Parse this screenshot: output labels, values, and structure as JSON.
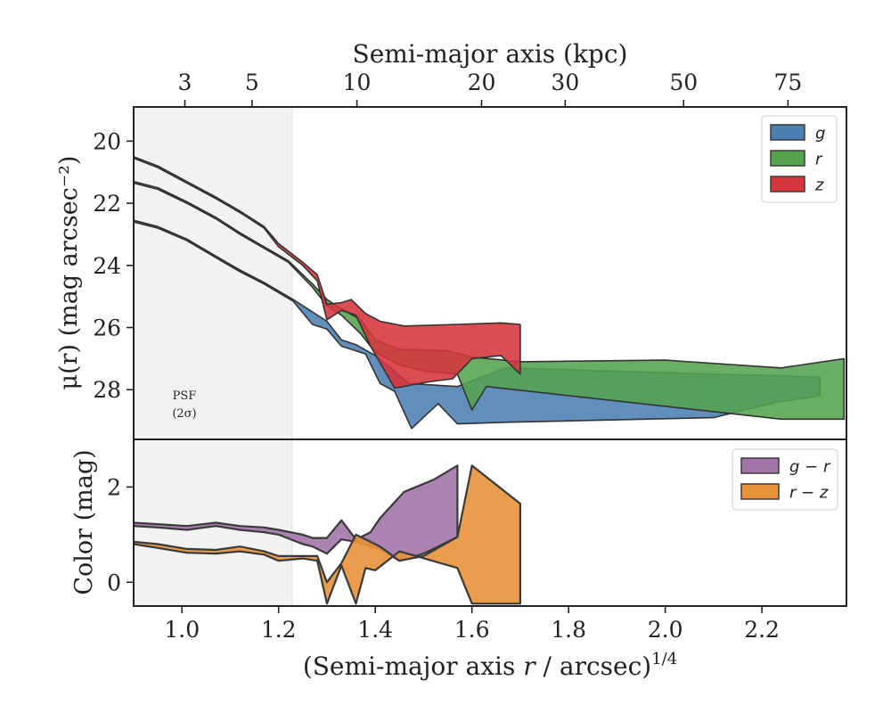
{
  "chart_data": [
    {
      "type": "area",
      "panel": "surface-brightness",
      "ylabel": "μ(r) (mag arcsec⁻²)",
      "ylim": [
        29.6,
        18.9
      ],
      "xlim": [
        0.9,
        2.375
      ],
      "y_ticks": [
        20,
        22,
        24,
        26,
        28
      ],
      "top_axis": {
        "label": "Semi-major axis (kpc)",
        "ticks": [
          {
            "label": "3",
            "x": 1.006
          },
          {
            "label": "5",
            "x": 1.145
          },
          {
            "label": "10",
            "x": 1.362
          },
          {
            "label": "20",
            "x": 1.62
          },
          {
            "label": "30",
            "x": 1.793
          },
          {
            "label": "50",
            "x": 2.038
          },
          {
            "label": "75",
            "x": 2.254
          }
        ]
      },
      "psf_band": {
        "x_end": 1.228,
        "label_line1": "PSF",
        "label_line2": "(2σ)"
      },
      "legend_position": "top-right",
      "series": [
        {
          "name": "g",
          "color": "#4b7fb3",
          "upper": [
            [
              0.9,
              22.55
            ],
            [
              0.95,
              22.75
            ],
            [
              1.01,
              23.15
            ],
            [
              1.07,
              23.7
            ],
            [
              1.12,
              24.15
            ],
            [
              1.17,
              24.55
            ],
            [
              1.23,
              25.1
            ],
            [
              1.27,
              25.5
            ],
            [
              1.3,
              25.8
            ],
            [
              1.33,
              26.4
            ],
            [
              1.36,
              26.55
            ],
            [
              1.4,
              26.9
            ],
            [
              1.47,
              27.8
            ],
            [
              1.57,
              27.9
            ],
            [
              1.67,
              27.3
            ],
            [
              2.1,
              27.5
            ],
            [
              2.23,
              27.55
            ],
            [
              2.32,
              27.6
            ]
          ],
          "lower": [
            [
              0.9,
              22.6
            ],
            [
              0.95,
              22.8
            ],
            [
              1.01,
              23.2
            ],
            [
              1.07,
              23.75
            ],
            [
              1.12,
              24.2
            ],
            [
              1.17,
              24.6
            ],
            [
              1.23,
              25.15
            ],
            [
              1.27,
              25.9
            ],
            [
              1.3,
              26.05
            ],
            [
              1.33,
              26.6
            ],
            [
              1.36,
              26.75
            ],
            [
              1.38,
              26.85
            ],
            [
              1.41,
              27.8
            ],
            [
              1.44,
              28.05
            ],
            [
              1.475,
              29.25
            ],
            [
              1.53,
              28.45
            ],
            [
              1.57,
              29.1
            ],
            [
              1.67,
              29.05
            ],
            [
              2.1,
              28.9
            ],
            [
              2.23,
              28.4
            ],
            [
              2.32,
              28.2
            ]
          ]
        },
        {
          "name": "r",
          "color": "#55a24f",
          "upper": [
            [
              0.9,
              21.3
            ],
            [
              0.95,
              21.5
            ],
            [
              1.01,
              21.95
            ],
            [
              1.07,
              22.45
            ],
            [
              1.12,
              22.95
            ],
            [
              1.17,
              23.4
            ],
            [
              1.22,
              23.85
            ],
            [
              1.27,
              24.6
            ],
            [
              1.3,
              25.1
            ],
            [
              1.33,
              25.4
            ],
            [
              1.37,
              25.75
            ],
            [
              1.4,
              26.4
            ],
            [
              1.45,
              26.7
            ],
            [
              1.55,
              26.75
            ],
            [
              1.6,
              26.95
            ],
            [
              1.7,
              27.1
            ],
            [
              2.0,
              27.05
            ],
            [
              2.24,
              27.3
            ],
            [
              2.37,
              27.0
            ]
          ],
          "lower": [
            [
              0.9,
              21.35
            ],
            [
              0.95,
              21.55
            ],
            [
              1.01,
              22.0
            ],
            [
              1.07,
              22.5
            ],
            [
              1.12,
              23.0
            ],
            [
              1.17,
              23.45
            ],
            [
              1.22,
              23.9
            ],
            [
              1.27,
              24.7
            ],
            [
              1.3,
              25.3
            ],
            [
              1.33,
              25.6
            ],
            [
              1.37,
              26.2
            ],
            [
              1.4,
              26.8
            ],
            [
              1.45,
              27.2
            ],
            [
              1.5,
              27.4
            ],
            [
              1.57,
              27.5
            ],
            [
              1.6,
              28.65
            ],
            [
              1.63,
              27.9
            ],
            [
              2.24,
              28.95
            ],
            [
              2.37,
              28.95
            ]
          ]
        },
        {
          "name": "z",
          "color": "#d6343b",
          "upper": [
            [
              0.9,
              20.5
            ],
            [
              0.95,
              20.8
            ],
            [
              1.01,
              21.3
            ],
            [
              1.07,
              21.8
            ],
            [
              1.12,
              22.25
            ],
            [
              1.17,
              22.75
            ],
            [
              1.2,
              23.3
            ],
            [
              1.25,
              23.9
            ],
            [
              1.28,
              24.3
            ],
            [
              1.3,
              25.25
            ],
            [
              1.33,
              25.2
            ],
            [
              1.35,
              25.1
            ],
            [
              1.38,
              25.55
            ],
            [
              1.41,
              25.8
            ],
            [
              1.46,
              25.95
            ],
            [
              1.57,
              25.9
            ],
            [
              1.66,
              25.85
            ],
            [
              1.7,
              25.9
            ]
          ],
          "lower": [
            [
              0.9,
              20.55
            ],
            [
              0.95,
              20.85
            ],
            [
              1.01,
              21.35
            ],
            [
              1.07,
              21.85
            ],
            [
              1.12,
              22.3
            ],
            [
              1.17,
              22.8
            ],
            [
              1.2,
              23.4
            ],
            [
              1.25,
              24.0
            ],
            [
              1.28,
              24.5
            ],
            [
              1.3,
              25.75
            ],
            [
              1.33,
              25.45
            ],
            [
              1.36,
              25.6
            ],
            [
              1.39,
              26.6
            ],
            [
              1.44,
              27.95
            ],
            [
              1.51,
              27.75
            ],
            [
              1.56,
              27.65
            ],
            [
              1.6,
              27.0
            ],
            [
              1.66,
              26.9
            ],
            [
              1.7,
              27.5
            ]
          ]
        }
      ]
    },
    {
      "type": "area",
      "panel": "color",
      "xlabel": "(Semi-major axis r / arcsec)¹ᐟ⁴",
      "xlabel_main": "(Semi-major axis ",
      "xlabel_var": "r",
      "xlabel_rest": " / arcsec)",
      "xlabel_exp": "1/4",
      "ylabel": "Color (mag)",
      "ylim": [
        -0.5,
        3.0
      ],
      "xlim": [
        0.9,
        2.375
      ],
      "y_ticks": [
        0,
        2
      ],
      "x_ticks": [
        1.0,
        1.2,
        1.4,
        1.6,
        1.8,
        2.0,
        2.2
      ],
      "x_tick_labels": [
        "1.0",
        "1.2",
        "1.4",
        "1.6",
        "1.8",
        "2.0",
        "2.2"
      ],
      "legend_position": "top-right",
      "series": [
        {
          "name": "g − r",
          "color": "#a275a8",
          "upper": [
            [
              0.9,
              1.25
            ],
            [
              0.95,
              1.22
            ],
            [
              1.01,
              1.18
            ],
            [
              1.07,
              1.25
            ],
            [
              1.12,
              1.18
            ],
            [
              1.17,
              1.15
            ],
            [
              1.2,
              1.1
            ],
            [
              1.25,
              1.0
            ],
            [
              1.27,
              0.93
            ],
            [
              1.3,
              0.93
            ],
            [
              1.33,
              1.3
            ],
            [
              1.36,
              0.9
            ],
            [
              1.39,
              1.05
            ],
            [
              1.41,
              1.35
            ],
            [
              1.46,
              1.9
            ],
            [
              1.52,
              2.15
            ],
            [
              1.57,
              2.45
            ]
          ],
          "lower": [
            [
              0.9,
              1.18
            ],
            [
              0.95,
              1.15
            ],
            [
              1.01,
              1.1
            ],
            [
              1.07,
              1.18
            ],
            [
              1.12,
              1.1
            ],
            [
              1.17,
              1.05
            ],
            [
              1.2,
              1.0
            ],
            [
              1.25,
              0.8
            ],
            [
              1.27,
              0.75
            ],
            [
              1.3,
              0.6
            ],
            [
              1.33,
              0.9
            ],
            [
              1.36,
              0.85
            ],
            [
              1.41,
              0.7
            ],
            [
              1.45,
              0.45
            ],
            [
              1.5,
              0.6
            ],
            [
              1.57,
              0.95
            ]
          ]
        },
        {
          "name": "r − z",
          "color": "#e8923a",
          "upper": [
            [
              0.9,
              0.85
            ],
            [
              0.95,
              0.8
            ],
            [
              1.01,
              0.7
            ],
            [
              1.07,
              0.68
            ],
            [
              1.12,
              0.75
            ],
            [
              1.17,
              0.65
            ],
            [
              1.2,
              0.55
            ],
            [
              1.25,
              0.55
            ],
            [
              1.28,
              0.55
            ],
            [
              1.3,
              0.0
            ],
            [
              1.33,
              0.4
            ],
            [
              1.36,
              1.0
            ],
            [
              1.41,
              0.75
            ],
            [
              1.45,
              0.45
            ],
            [
              1.5,
              0.55
            ],
            [
              1.57,
              0.95
            ],
            [
              1.6,
              2.45
            ],
            [
              1.7,
              1.65
            ]
          ],
          "lower": [
            [
              0.9,
              0.8
            ],
            [
              0.95,
              0.72
            ],
            [
              1.01,
              0.62
            ],
            [
              1.07,
              0.6
            ],
            [
              1.12,
              0.65
            ],
            [
              1.17,
              0.58
            ],
            [
              1.2,
              0.45
            ],
            [
              1.25,
              0.5
            ],
            [
              1.28,
              0.45
            ],
            [
              1.3,
              -0.45
            ],
            [
              1.33,
              0.35
            ],
            [
              1.36,
              -0.45
            ],
            [
              1.38,
              0.3
            ],
            [
              1.4,
              0.25
            ],
            [
              1.45,
              0.65
            ],
            [
              1.57,
              0.3
            ],
            [
              1.6,
              -0.45
            ],
            [
              1.7,
              -0.45
            ]
          ]
        }
      ]
    }
  ]
}
